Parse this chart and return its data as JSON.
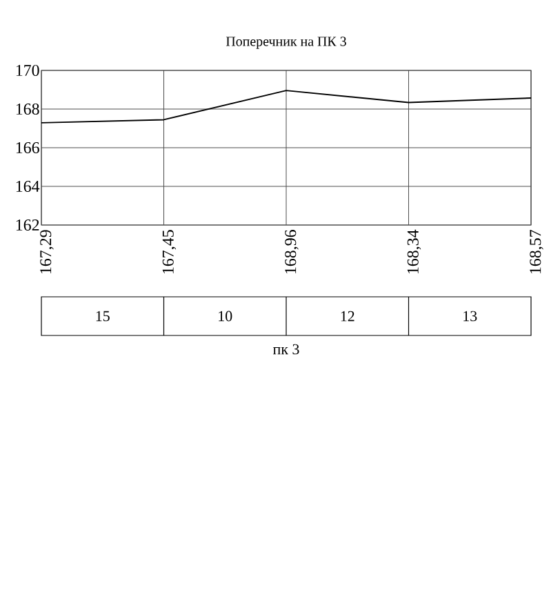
{
  "chart_data": {
    "type": "line",
    "title": "Поперечник на ПК 3",
    "categories": [
      null,
      null,
      null,
      null,
      null
    ],
    "values": [
      167.29,
      167.45,
      168.96,
      168.34,
      168.57
    ],
    "value_labels": [
      "167,29",
      "167,45",
      "168,96",
      "168,34",
      "168,57"
    ],
    "color": "#000000",
    "ylim": [
      162,
      170
    ],
    "yticks": [
      162,
      164,
      166,
      168,
      170
    ],
    "grid": true,
    "tick_labels": "y",
    "marker": "none",
    "line_style": "solid",
    "annotations": [
      "15",
      "10",
      "12",
      "13",
      "пк 3"
    ]
  }
}
